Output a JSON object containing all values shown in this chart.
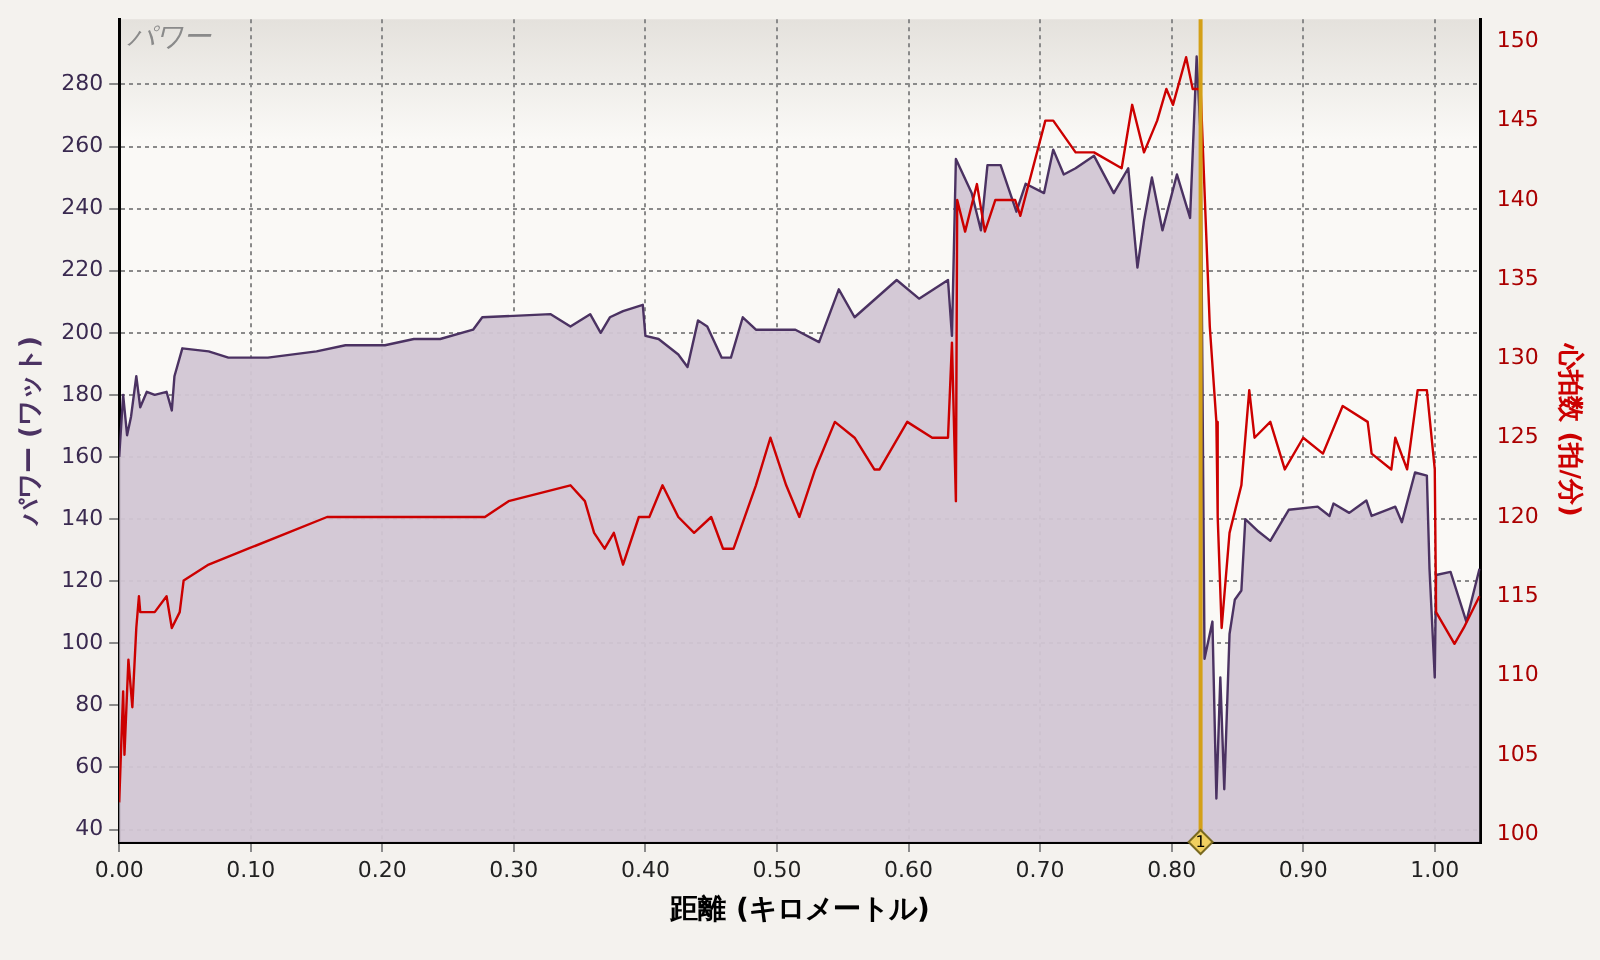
{
  "chart_data": {
    "type": "area",
    "title": "パワー",
    "xlabel": "距離 (キロメートル)",
    "ylabel": "パワー (ワット)",
    "y2label": "心拍数 (拍/分)",
    "xlim": [
      0,
      1.035
    ],
    "xticks": [
      {
        "value": 0,
        "label": "0.00"
      },
      {
        "value": 0.1,
        "label": "0.10"
      },
      {
        "value": 0.2,
        "label": "0.20"
      },
      {
        "value": 0.3,
        "label": "0.30"
      },
      {
        "value": 0.4,
        "label": "0.40"
      },
      {
        "value": 0.5,
        "label": "0.50"
      },
      {
        "value": 0.6,
        "label": "0.60"
      },
      {
        "value": 0.7,
        "label": "0.70"
      },
      {
        "value": 0.8,
        "label": "0.80"
      },
      {
        "value": 0.9,
        "label": "0.90"
      },
      {
        "value": 1,
        "label": "1.00"
      }
    ],
    "ylim": [
      36,
      301
    ],
    "yticks": [
      40,
      60,
      80,
      100,
      120,
      140,
      160,
      180,
      200,
      220,
      240,
      260,
      280
    ],
    "y2lim": [
      99.5,
      151.4
    ],
    "y2ticks": [
      100,
      105,
      110,
      115,
      120,
      125,
      130,
      135,
      140,
      145,
      150
    ],
    "grid": true,
    "legend": false,
    "marker": "none",
    "line_style": "solid",
    "ref_lines": [
      {
        "axis": "x",
        "value": 0.822,
        "label": "1",
        "color": "#d4a017"
      }
    ],
    "series": [
      {
        "color": "#4b3262",
        "x": [
          0,
          0.003,
          0.006,
          0.009,
          0.013,
          0.016,
          0.021,
          0.027,
          0.036,
          0.04,
          0.042,
          0.048,
          0.068,
          0.083,
          0.113,
          0.15,
          0.172,
          0.202,
          0.224,
          0.244,
          0.269,
          0.276,
          0.328,
          0.343,
          0.358,
          0.366,
          0.373,
          0.383,
          0.398,
          0.4,
          0.41,
          0.425,
          0.432,
          0.44,
          0.447,
          0.458,
          0.465,
          0.474,
          0.484,
          0.499,
          0.514,
          0.532,
          0.547,
          0.559,
          0.591,
          0.608,
          0.63,
          0.633,
          0.636,
          0.648,
          0.655,
          0.66,
          0.67,
          0.682,
          0.689,
          0.703,
          0.71,
          0.718,
          0.727,
          0.741,
          0.756,
          0.767,
          0.774,
          0.779,
          0.785,
          0.793,
          0.804,
          0.814,
          0.819,
          0.822,
          0.825,
          0.831,
          0.834,
          0.837,
          0.84,
          0.844,
          0.848,
          0.853,
          0.856,
          0.866,
          0.875,
          0.889,
          0.911,
          0.92,
          0.923,
          0.935,
          0.948,
          0.952,
          0.97,
          0.975,
          0.985,
          0.994,
          0.996,
          1,
          1.001,
          1.012,
          1.024,
          1.034
        ],
        "values": [
          160,
          180,
          167,
          173,
          186,
          176,
          181,
          180,
          181,
          175,
          186,
          195,
          194,
          192,
          192,
          194,
          196,
          196,
          198,
          198,
          201,
          205,
          206,
          202,
          206,
          200,
          205,
          207,
          209,
          199,
          198,
          193,
          189,
          204,
          202,
          192,
          192,
          205,
          201,
          201,
          201,
          197,
          214,
          205,
          217,
          211,
          217,
          199,
          256,
          245,
          233,
          254,
          254,
          239,
          248,
          245,
          259,
          251,
          253,
          257,
          245,
          253,
          221,
          236,
          250,
          233,
          251,
          237,
          289,
          264,
          95,
          107,
          50,
          89,
          53,
          103,
          114,
          117,
          140,
          136,
          133,
          143,
          144,
          141,
          145,
          142,
          146,
          141,
          144,
          139,
          155,
          154,
          124,
          89,
          122,
          123,
          107,
          124
        ]
      },
      {
        "type": "line",
        "axis": "y2",
        "color": "#cc0000",
        "x": [
          0,
          0.003,
          0.004,
          0.007,
          0.01,
          0.013,
          0.015,
          0.016,
          0.027,
          0.036,
          0.04,
          0.046,
          0.049,
          0.068,
          0.098,
          0.128,
          0.158,
          0.183,
          0.202,
          0.221,
          0.273,
          0.278,
          0.296,
          0.343,
          0.354,
          0.361,
          0.369,
          0.376,
          0.383,
          0.395,
          0.403,
          0.413,
          0.425,
          0.437,
          0.45,
          0.459,
          0.467,
          0.484,
          0.495,
          0.507,
          0.517,
          0.529,
          0.544,
          0.559,
          0.574,
          0.578,
          0.599,
          0.618,
          0.63,
          0.633,
          0.636,
          0.637,
          0.643,
          0.652,
          0.658,
          0.666,
          0.681,
          0.685,
          0.704,
          0.71,
          0.727,
          0.741,
          0.762,
          0.77,
          0.779,
          0.789,
          0.796,
          0.801,
          0.811,
          0.816,
          0.822,
          0.829,
          0.834,
          0.835,
          0.838,
          0.844,
          0.853,
          0.859,
          0.863,
          0.875,
          0.886,
          0.9,
          0.915,
          0.93,
          0.949,
          0.952,
          0.967,
          0.97,
          0.979,
          0.987,
          0.994,
          1,
          1.001,
          1.015,
          1.022,
          1.034
        ],
        "values": [
          102,
          109,
          105,
          111,
          108,
          113,
          115,
          114,
          114,
          115,
          113,
          114,
          116,
          117,
          118,
          119,
          120,
          120,
          120,
          120,
          120,
          120,
          121,
          122,
          121,
          119,
          118,
          119,
          117,
          120,
          120,
          122,
          120,
          119,
          120,
          118,
          118,
          122,
          125,
          122,
          120,
          123,
          126,
          125,
          123,
          123,
          126,
          125,
          125,
          131,
          121,
          140,
          138,
          141,
          138,
          140,
          140,
          139,
          145,
          145,
          143,
          143,
          142,
          146,
          143,
          145,
          147,
          146,
          149,
          147,
          147,
          132,
          126,
          120,
          113,
          119,
          122,
          128,
          125,
          126,
          123,
          125,
          124,
          127,
          126,
          124,
          123,
          125,
          123,
          128,
          128,
          123,
          114,
          112,
          113,
          115
        ]
      }
    ]
  }
}
